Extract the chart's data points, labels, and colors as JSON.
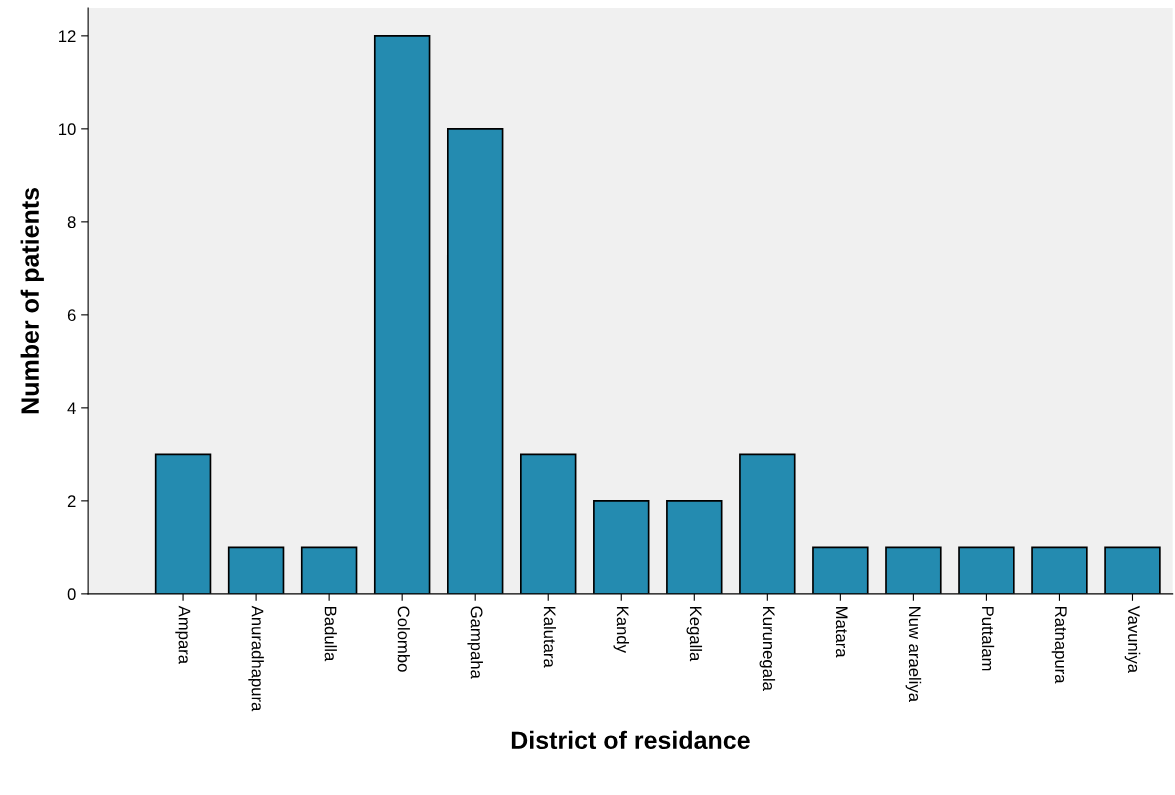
{
  "chart_data": {
    "type": "bar",
    "xlabel": "District of residance",
    "ylabel": "Number of patients",
    "categories": [
      "Ampara",
      "Anuradhapura",
      "Badulla",
      "Colombo",
      "Gampaha",
      "Kalutara",
      "Kandy",
      "Kegalla",
      "Kurunegala",
      "Matara",
      "Nuw araeliya",
      "Puttalam",
      "Ratnapura",
      "Vavuniya"
    ],
    "values": [
      3,
      1,
      1,
      12,
      10,
      3,
      2,
      2,
      3,
      1,
      1,
      1,
      1,
      1
    ],
    "color": "#248bb0",
    "ylim": [
      0,
      12.6
    ],
    "yticks": [
      0,
      2,
      4,
      6,
      8,
      10,
      12
    ],
    "grid": false,
    "legend": false
  }
}
